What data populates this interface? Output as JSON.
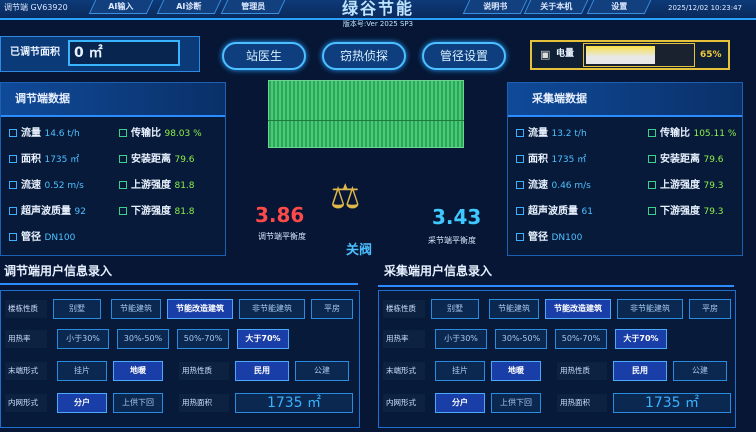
{
  "header": {
    "device_id": "调节端 GV63920",
    "tabs_left": [
      "AI输入",
      "AI诊断",
      "管理员"
    ],
    "title": "绿谷节能",
    "version": "版本号:Ver 2025 SP3",
    "tabs_right": [
      "说明书",
      "关于本机",
      "设置"
    ],
    "datetime": "2025/12/02 10:23:47"
  },
  "toolbar": {
    "area_label": "已调节面积",
    "area_value": "0 ㎡",
    "buttons": [
      "站医生",
      "窃热侦探",
      "管径设置"
    ],
    "battery_label": "电量",
    "battery_percent": 65,
    "battery_text": "65%"
  },
  "regulating": {
    "title": "调节端数据",
    "left": [
      {
        "label": "流量",
        "value": "14.6 t/h"
      },
      {
        "label": "面积",
        "value": "1735 ㎡"
      },
      {
        "label": "流速",
        "value": "0.52 m/s"
      },
      {
        "label": "超声波质量",
        "value": "92"
      },
      {
        "label": "管径",
        "value": "DN100"
      }
    ],
    "right": [
      {
        "label": "传输比",
        "value": "98.03 %"
      },
      {
        "label": "安装距离",
        "value": "79.6"
      },
      {
        "label": "上游强度",
        "value": "81.8"
      },
      {
        "label": "下游强度",
        "value": "81.8"
      }
    ]
  },
  "collecting": {
    "title": "采集端数据",
    "left": [
      {
        "label": "流量",
        "value": "13.2 t/h"
      },
      {
        "label": "面积",
        "value": "1735 ㎡"
      },
      {
        "label": "流速",
        "value": "0.46 m/s"
      },
      {
        "label": "超声波质量",
        "value": "61"
      },
      {
        "label": "管径",
        "value": "DN100"
      }
    ],
    "right": [
      {
        "label": "传输比",
        "value": "105.11 %"
      },
      {
        "label": "安装距离",
        "value": "79.6"
      },
      {
        "label": "上游强度",
        "value": "79.3"
      },
      {
        "label": "下游强度",
        "value": "79.3"
      }
    ]
  },
  "balance": {
    "left_value": "3.86",
    "left_label": "调节端平衡度",
    "right_value": "3.43",
    "right_label": "采节端平衡度",
    "valve": "关阀"
  },
  "forms": [
    {
      "title": "调节端用户信息录入",
      "building_label": "楼栋性质",
      "building_opts": [
        "别墅",
        "节能建筑",
        "节能改造建筑",
        "非节能建筑",
        "平房"
      ],
      "building_sel": 2,
      "rate_label": "用热率",
      "rate_opts": [
        "小于30%",
        "30%-50%",
        "50%-70%",
        "大于70%"
      ],
      "rate_sel": 3,
      "terminal_label": "末端形式",
      "terminal_opts": [
        "挂片",
        "地暖"
      ],
      "terminal_sel": 1,
      "usage_label": "用热性质",
      "usage_opts": [
        "民用",
        "公建"
      ],
      "usage_sel": 0,
      "net_label": "内网形式",
      "net_opts": [
        "分户",
        "上供下回"
      ],
      "net_sel": 0,
      "heat_area_label": "用热面积",
      "heat_area_value": "1735 ㎡"
    },
    {
      "title": "采集端用户信息录入",
      "building_label": "楼栋性质",
      "building_opts": [
        "别墅",
        "节能建筑",
        "节能改造建筑",
        "非节能建筑",
        "平房"
      ],
      "building_sel": 2,
      "rate_label": "用热率",
      "rate_opts": [
        "小于30%",
        "30%-50%",
        "50%-70%",
        "大于70%"
      ],
      "rate_sel": 3,
      "terminal_label": "末端形式",
      "terminal_opts": [
        "挂片",
        "地暖"
      ],
      "terminal_sel": 1,
      "usage_label": "用热性质",
      "usage_opts": [
        "民用",
        "公建"
      ],
      "usage_sel": 0,
      "net_label": "内网形式",
      "net_opts": [
        "分户",
        "上供下回"
      ],
      "net_sel": 0,
      "heat_area_label": "用热面积",
      "heat_area_value": "1735 ㎡"
    }
  ],
  "colors": {
    "accent": "#2a8cff",
    "battery": "#e6c23a",
    "left_balance": "#ff4a4a",
    "right_balance": "#3ec8ff",
    "green_value": "#8ef04a"
  }
}
